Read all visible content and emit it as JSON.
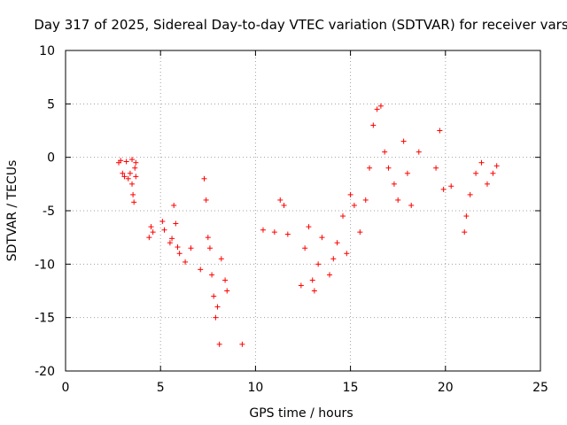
{
  "chart_data": {
    "type": "scatter",
    "title": "Day 317 of 2025, Sidereal Day-to-day VTEC variation (SDTVAR) for receiver vars",
    "xlabel": "GPS time / hours",
    "ylabel": "SDTVAR / TECUs",
    "xlim": [
      0,
      25
    ],
    "ylim": [
      -20,
      10
    ],
    "xticks": [
      0,
      5,
      10,
      15,
      20,
      25
    ],
    "yticks": [
      -20,
      -15,
      -10,
      -5,
      0,
      5,
      10
    ],
    "grid": true,
    "marker": "+",
    "series_color": "#ff0000",
    "series": [
      {
        "name": "vars",
        "x": [
          2.8,
          2.9,
          3.0,
          3.1,
          3.2,
          3.3,
          3.4,
          3.5,
          3.5,
          3.55,
          3.6,
          3.65,
          3.7,
          3.7,
          4.4,
          4.5,
          4.6,
          5.1,
          5.2,
          5.5,
          5.6,
          5.7,
          5.8,
          5.9,
          6.0,
          6.3,
          6.6,
          7.1,
          7.3,
          7.4,
          7.5,
          7.6,
          7.7,
          7.8,
          7.9,
          8.0,
          8.1,
          8.2,
          8.4,
          8.5,
          9.3,
          10.4,
          11.0,
          11.3,
          11.5,
          11.7,
          12.4,
          12.6,
          12.8,
          13.0,
          13.1,
          13.3,
          13.5,
          13.9,
          14.1,
          14.3,
          14.6,
          14.8,
          15.0,
          15.2,
          15.5,
          15.8,
          16.0,
          16.2,
          16.4,
          16.6,
          16.8,
          17.0,
          17.3,
          17.5,
          17.8,
          18.0,
          18.2,
          18.6,
          19.5,
          19.7,
          19.9,
          20.3,
          21.0,
          21.1,
          21.3,
          21.6,
          21.9,
          22.2,
          22.5,
          22.7
        ],
        "y": [
          -0.5,
          -0.3,
          -1.5,
          -1.8,
          -0.4,
          -2.0,
          -1.5,
          -2.5,
          -0.2,
          -3.5,
          -4.2,
          -1.0,
          -1.8,
          -0.5,
          -7.5,
          -6.5,
          -7.0,
          -6.0,
          -6.8,
          -8.0,
          -7.6,
          -4.5,
          -6.2,
          -8.4,
          -9.0,
          -9.8,
          -8.5,
          -10.5,
          -2.0,
          -4.0,
          -7.5,
          -8.5,
          -11.0,
          -13.0,
          -15.0,
          -14.0,
          -17.5,
          -9.5,
          -11.5,
          -12.5,
          -17.5,
          -6.8,
          -7.0,
          -4.0,
          -4.5,
          -7.2,
          -12.0,
          -8.5,
          -6.5,
          -11.5,
          -12.5,
          -10.0,
          -7.5,
          -11.0,
          -9.5,
          -8.0,
          -5.5,
          -9.0,
          -3.5,
          -4.5,
          -7.0,
          -4.0,
          -1.0,
          3.0,
          4.5,
          4.8,
          0.5,
          -1.0,
          -2.5,
          -4.0,
          1.5,
          -1.5,
          -4.5,
          0.5,
          -1.0,
          2.5,
          -3.0,
          -2.7,
          -7.0,
          -5.5,
          -3.5,
          -1.5,
          -0.5,
          -2.5,
          -1.5,
          -0.8
        ]
      }
    ]
  }
}
